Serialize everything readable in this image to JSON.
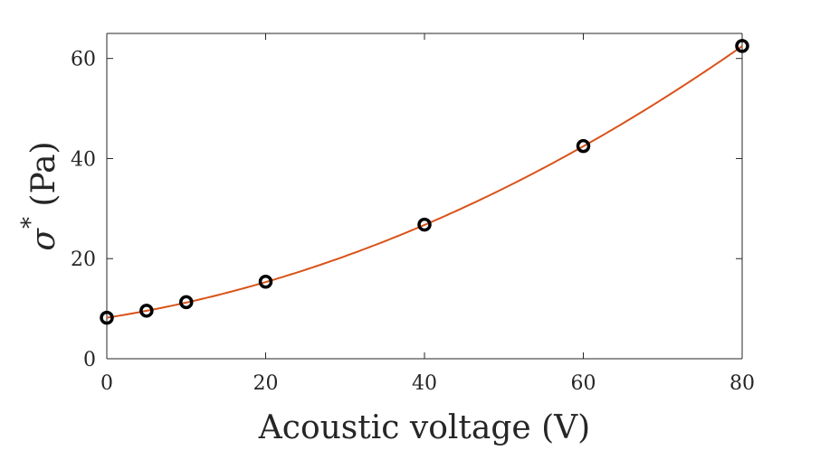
{
  "chart_data": {
    "type": "scatter",
    "xlabel": "Acoustic voltage (V)",
    "ylabel_symbol": "σ",
    "ylabel_superscript": "*",
    "ylabel_unit": "(Pa)",
    "xlim": [
      0,
      80
    ],
    "ylim": [
      0,
      65
    ],
    "xticks": [
      0,
      20,
      40,
      60,
      80
    ],
    "yticks": [
      0,
      20,
      40,
      60
    ],
    "grid": false,
    "series": [
      {
        "type": "scatter",
        "marker": "open-circle",
        "color": "#000000",
        "points": [
          {
            "x": 0,
            "y": 8.2
          },
          {
            "x": 5,
            "y": 9.6
          },
          {
            "x": 10,
            "y": 11.3
          },
          {
            "x": 20,
            "y": 15.4
          },
          {
            "x": 40,
            "y": 26.8
          },
          {
            "x": 60,
            "y": 42.5
          },
          {
            "x": 80,
            "y": 62.5
          }
        ]
      },
      {
        "type": "line",
        "color": "#D95319",
        "fit": "quadratic",
        "coefficients": [
          8.2,
          0.2486,
          0.00537
        ]
      }
    ]
  }
}
